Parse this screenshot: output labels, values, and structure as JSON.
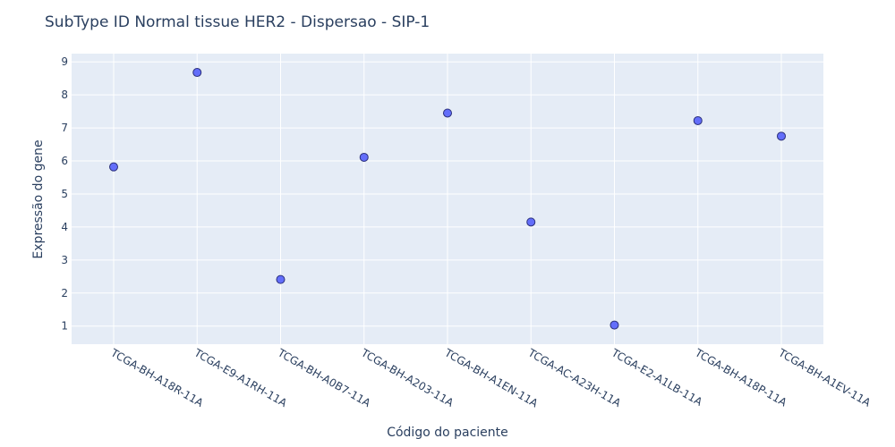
{
  "chart_data": {
    "type": "scatter",
    "title": "SubType ID Normal tissue HER2 - Dispersao - SIP-1",
    "xlabel": "Código do paciente",
    "ylabel": "Expressão do gene",
    "categories": [
      "TCGA-BH-A18R-11A",
      "TCGA-E9-A1RH-11A",
      "TCGA-BH-A0B7-11A",
      "TCGA-BH-A203-11A",
      "TCGA-BH-A1EN-11A",
      "TCGA-AC-A23H-11A",
      "TCGA-E2-A1LB-11A",
      "TCGA-BH-A18P-11A",
      "TCGA-BH-A1EV-11A"
    ],
    "values": [
      5.82,
      8.68,
      2.41,
      6.11,
      7.45,
      4.15,
      1.03,
      7.22,
      6.75
    ],
    "ylim": [
      0.45,
      9.25
    ],
    "yticks": [
      1,
      2,
      3,
      4,
      5,
      6,
      7,
      8,
      9
    ],
    "grid": true,
    "marker_color": "#636efa",
    "marker_edge_color": "#2a2f7a",
    "plot_bg": "#e5ecf6"
  }
}
